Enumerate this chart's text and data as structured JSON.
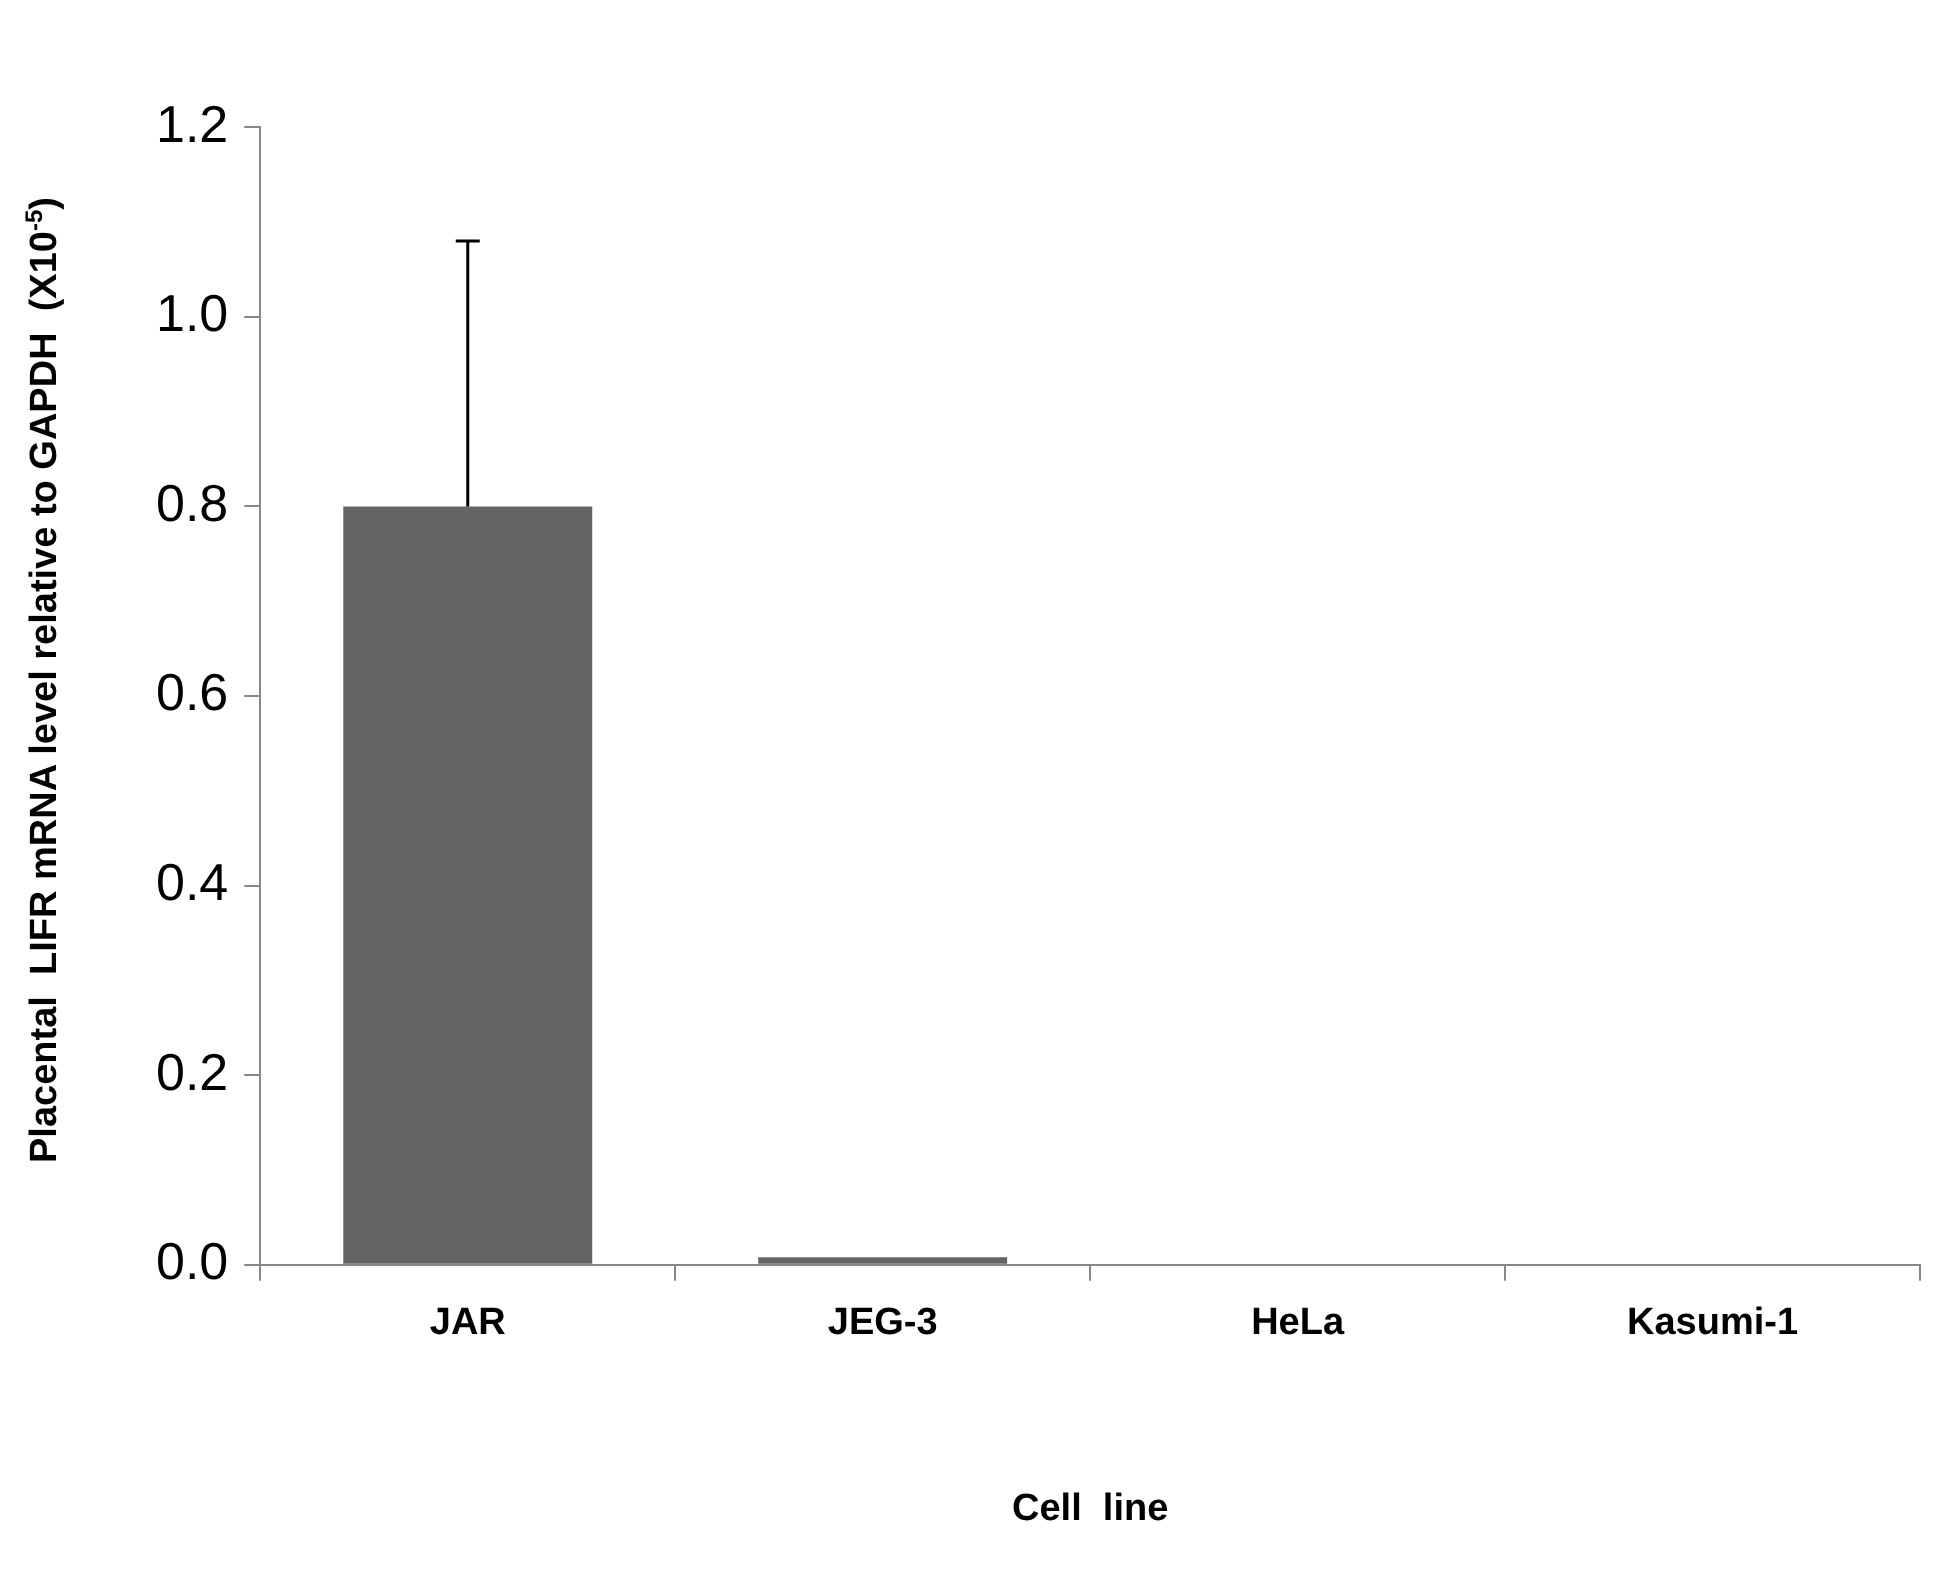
{
  "chart_data": {
    "type": "bar",
    "xlabel": "Cell  line",
    "ylabel": "Placental  LIFR mRNA level relative to GAPDH  (X10$^{-5}$)",
    "categories": [
      "JAR",
      "JEG-3",
      "HeLa",
      "Kasumi-1"
    ],
    "values": [
      0.8,
      0.008,
      0,
      0
    ],
    "errors": [
      0.28,
      null,
      null,
      null
    ],
    "color": "#646464",
    "ylim": [
      0,
      1.2
    ],
    "yticks": [
      {
        "value": 0,
        "label": "0.0"
      },
      {
        "value": 0.2,
        "label": "0.2"
      },
      {
        "value": 0.4,
        "label": "0.4"
      },
      {
        "value": 0.6,
        "label": "0.6"
      },
      {
        "value": 0.8,
        "label": "0.8"
      },
      {
        "value": 1.0,
        "label": "1.0"
      },
      {
        "value": 1.2,
        "label": "1.2"
      }
    ],
    "grid": false,
    "legend": false
  }
}
